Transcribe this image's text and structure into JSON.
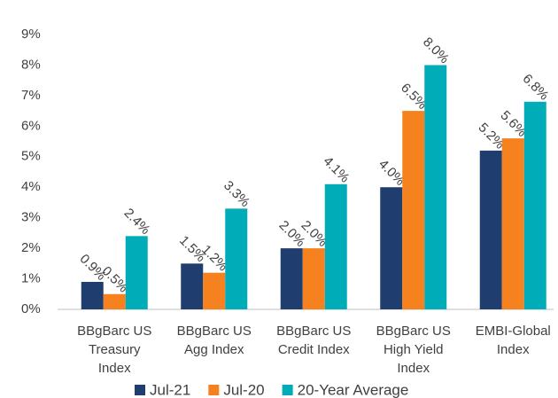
{
  "chart_data": {
    "type": "bar",
    "categories": [
      "BBgBarc US\nTreasury\nIndex",
      "BBgBarc US\nAgg Index",
      "BBgBarc US\nCredit Index",
      "BBgBarc US\nHigh Yield\nIndex",
      "EMBI-Global\nIndex"
    ],
    "series": [
      {
        "name": "Jul-21",
        "color": "#1f3d6e",
        "values": [
          0.9,
          1.5,
          2.0,
          4.0,
          5.2
        ],
        "value_labels": [
          "0.9%",
          "1.5%",
          "2.0%",
          "4.0%",
          "5.2%"
        ]
      },
      {
        "name": "Jul-20",
        "color": "#f5821f",
        "values": [
          0.5,
          1.2,
          2.0,
          6.5,
          5.6
        ],
        "value_labels": [
          "0.5%",
          "1.2%",
          "2.0%",
          "6.5%",
          "5.6%"
        ]
      },
      {
        "name": "20-Year Average",
        "color": "#00acb8",
        "values": [
          2.4,
          3.3,
          4.1,
          8.0,
          6.8
        ],
        "value_labels": [
          "2.4%",
          "3.3%",
          "4.1%",
          "8.0%",
          "6.8%"
        ]
      }
    ],
    "ylim": [
      0,
      9
    ],
    "yticks": [
      {
        "value": 0,
        "label": "0%"
      },
      {
        "value": 1,
        "label": "1%"
      },
      {
        "value": 2,
        "label": "2%"
      },
      {
        "value": 3,
        "label": "3%"
      },
      {
        "value": 4,
        "label": "4%"
      },
      {
        "value": 5,
        "label": "5%"
      },
      {
        "value": 6,
        "label": "6%"
      },
      {
        "value": 7,
        "label": "7%"
      },
      {
        "value": 8,
        "label": "8%"
      },
      {
        "value": 9,
        "label": "9%"
      }
    ],
    "grid": false,
    "legend": "bottom"
  }
}
